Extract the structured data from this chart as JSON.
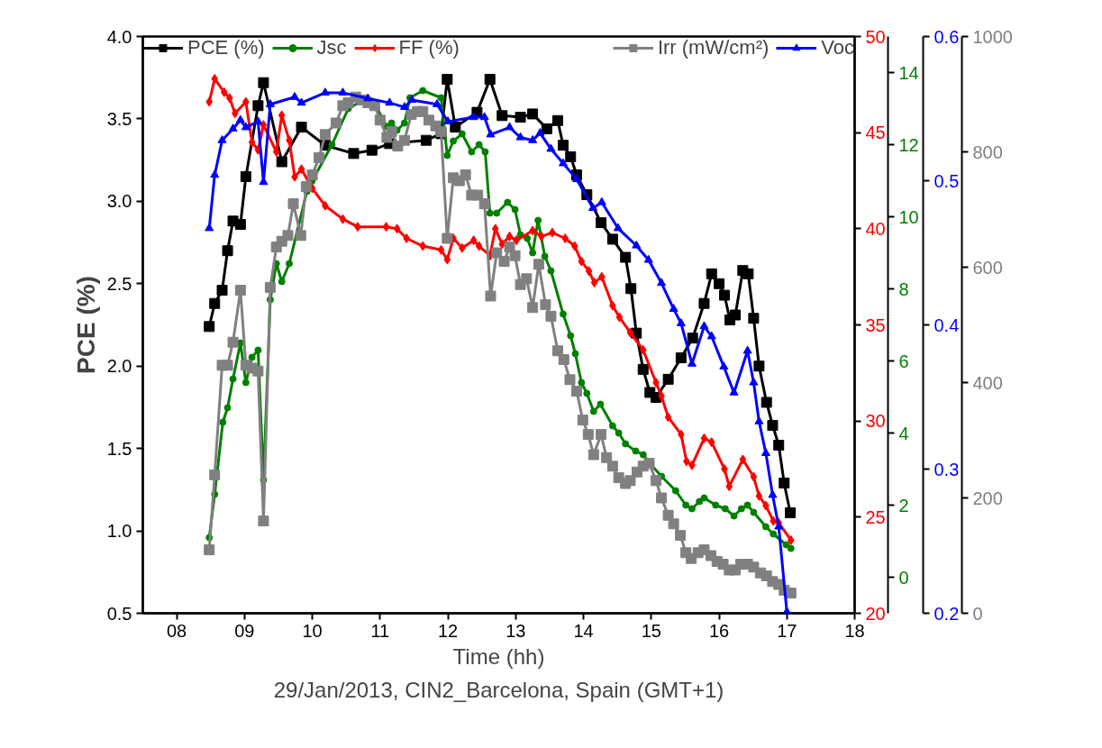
{
  "chart_data": [
    {
      "type": "line",
      "xlabel": "Time (hh)",
      "ylabel": "PCE (%)",
      "annotations": [
        "29/Jan/2013, CIN2_Barcelona, Spain (GMT+1)"
      ],
      "xlim": [
        7.5,
        18
      ],
      "xticks": [
        {
          "value": 8,
          "label": "08"
        },
        {
          "value": 9,
          "label": "09"
        },
        {
          "value": 10,
          "label": "10"
        },
        {
          "value": 11,
          "label": "11"
        },
        {
          "value": 12,
          "label": "12"
        },
        {
          "value": 13,
          "label": "13"
        },
        {
          "value": 14,
          "label": "14"
        },
        {
          "value": 15,
          "label": "15"
        },
        {
          "value": 16,
          "label": "16"
        },
        {
          "value": 17,
          "label": "17"
        },
        {
          "value": 18,
          "label": "18"
        }
      ],
      "ylim": [
        0.5,
        4.0
      ],
      "yticks": [
        {
          "value": 0.5,
          "label": "0.5"
        },
        {
          "value": 1.0,
          "label": "1.0"
        },
        {
          "value": 1.5,
          "label": "1.5"
        },
        {
          "value": 2.0,
          "label": "2.0"
        },
        {
          "value": 2.5,
          "label": "2.5"
        },
        {
          "value": 3.0,
          "label": "3.0"
        },
        {
          "value": 3.5,
          "label": "3.5"
        },
        {
          "value": 4.0,
          "label": "4.0"
        }
      ],
      "y2lim": [
        20,
        50
      ],
      "y2ticks": [
        20,
        25,
        30,
        35,
        40,
        45,
        50
      ],
      "y3lim": [
        -1,
        15
      ],
      "y3ticks": [
        0,
        2,
        4,
        6,
        8,
        10,
        12,
        14
      ],
      "legend": "top",
      "line_style": "solid",
      "series": [
        {
          "name": "PCE (%)",
          "color": "#000000",
          "marker": "square",
          "x": [
            8.48,
            8.56,
            8.67,
            8.75,
            8.83,
            8.94,
            9.02,
            9.2,
            9.28,
            9.55,
            9.84,
            10.19,
            10.61,
            10.88,
            11.14,
            11.68,
            11.9,
            11.99,
            12.11,
            12.43,
            12.62,
            12.8,
            13.07,
            13.25,
            13.46,
            13.62,
            13.7,
            13.81,
            13.9,
            14.05,
            14.26,
            14.43,
            14.62,
            14.7,
            14.78,
            14.88,
            14.98,
            15.07,
            15.25,
            15.44,
            15.61,
            15.78,
            15.89,
            16.0,
            16.08,
            16.16,
            16.24,
            16.35,
            16.43,
            16.51,
            16.59,
            16.7,
            16.79,
            16.88,
            16.96,
            17.05
          ],
          "values": [
            2.24,
            2.38,
            2.46,
            2.7,
            2.88,
            2.86,
            3.15,
            3.58,
            3.72,
            3.24,
            3.45,
            3.34,
            3.29,
            3.31,
            3.35,
            3.37,
            3.41,
            3.74,
            3.45,
            3.54,
            3.74,
            3.52,
            3.51,
            3.53,
            3.44,
            3.49,
            3.34,
            3.27,
            3.16,
            3.04,
            2.87,
            2.77,
            2.66,
            2.47,
            2.2,
            1.98,
            1.84,
            1.81,
            1.92,
            2.05,
            2.17,
            2.38,
            2.56,
            2.5,
            2.43,
            2.28,
            2.31,
            2.58,
            2.56,
            2.29,
            2.0,
            1.78,
            1.64,
            1.52,
            1.29,
            1.11
          ]
        },
        {
          "name": "Jsc",
          "color": "#008000",
          "axis": "y3",
          "marker": "circle",
          "x": [
            8.48,
            8.56,
            8.68,
            8.75,
            8.83,
            8.94,
            9.02,
            9.11,
            9.2,
            9.28,
            9.38,
            9.47,
            9.55,
            9.66,
            9.92,
            10.0,
            10.29,
            10.53,
            10.72,
            10.93,
            11.1,
            11.17,
            11.25,
            11.36,
            11.44,
            11.63,
            11.9,
            11.99,
            12.08,
            12.21,
            12.35,
            12.46,
            12.55,
            12.62,
            12.72,
            12.88,
            12.99,
            13.07,
            13.17,
            13.25,
            13.33,
            13.43,
            13.52,
            13.7,
            13.81,
            13.88,
            13.97,
            14.05,
            14.15,
            14.25,
            14.43,
            14.52,
            14.62,
            14.77,
            14.88,
            14.96,
            15.15,
            15.36,
            15.51,
            15.6,
            15.71,
            15.78,
            15.95,
            16.09,
            16.22,
            16.33,
            16.42,
            16.51,
            16.69,
            16.8,
            16.99,
            17.06
          ],
          "values": [
            1.1,
            2.3,
            4.3,
            4.7,
            5.5,
            6.5,
            5.4,
            6.1,
            6.3,
            2.7,
            7.7,
            8.7,
            8.2,
            8.7,
            10.7,
            11.0,
            12.0,
            13.0,
            13.2,
            13.1,
            12.5,
            12.6,
            12.4,
            12.6,
            13.3,
            13.5,
            13.3,
            11.7,
            12.1,
            12.3,
            11.8,
            12.0,
            11.8,
            10.1,
            10.1,
            10.4,
            10.2,
            9.5,
            9.4,
            9.0,
            9.9,
            8.9,
            8.5,
            7.3,
            6.7,
            6.2,
            5.4,
            5.1,
            4.6,
            4.8,
            4.2,
            4.0,
            3.7,
            3.5,
            3.4,
            3.2,
            2.8,
            2.4,
            2.0,
            1.9,
            2.1,
            2.2,
            2.0,
            1.9,
            1.7,
            1.9,
            2.0,
            1.8,
            1.4,
            1.2,
            0.9,
            0.8
          ]
        },
        {
          "name": "FF (%)",
          "color": "#ff0000",
          "axis": "y2",
          "marker": "diamond",
          "x": [
            8.48,
            8.56,
            8.7,
            8.78,
            8.86,
            9.02,
            9.11,
            9.2,
            9.28,
            9.47,
            9.55,
            9.66,
            9.74,
            9.84,
            10.0,
            10.19,
            10.45,
            10.67,
            11.09,
            11.25,
            11.39,
            11.63,
            11.9,
            11.99,
            12.08,
            12.21,
            12.38,
            12.46,
            12.62,
            12.7,
            12.8,
            12.91,
            13.01,
            13.25,
            13.38,
            13.54,
            13.73,
            13.87,
            13.97,
            14.08,
            14.16,
            14.27,
            14.43,
            14.53,
            14.69,
            14.88,
            15.07,
            15.15,
            15.25,
            15.44,
            15.52,
            15.6,
            15.78,
            15.89,
            16.08,
            16.15,
            16.35,
            16.51,
            16.59,
            16.69,
            16.8,
            16.88,
            17.06
          ],
          "values": [
            46.6,
            47.8,
            47.1,
            46.8,
            46.0,
            46.6,
            44.5,
            44.1,
            45.4,
            44.0,
            45.9,
            44.6,
            42.7,
            43.1,
            42.1,
            41.2,
            40.5,
            40.1,
            40.1,
            40.0,
            39.5,
            39.1,
            38.9,
            38.4,
            39.5,
            39.0,
            39.4,
            39.1,
            38.6,
            40.0,
            39.2,
            39.6,
            39.4,
            39.9,
            39.6,
            39.8,
            39.5,
            39.1,
            38.3,
            37.8,
            37.2,
            37.5,
            36.0,
            35.4,
            34.6,
            33.7,
            32.0,
            31.3,
            30.2,
            29.3,
            27.9,
            27.7,
            29.1,
            28.9,
            27.5,
            26.6,
            28.0,
            27.1,
            26.1,
            25.6,
            24.8,
            24.7,
            23.8
          ]
        }
      ]
    },
    {
      "type": "line",
      "tick_labels": "y",
      "xlim": [
        7.5,
        18
      ],
      "ylim": [
        0.2,
        0.6
      ],
      "yticks": [
        0.2,
        0.3,
        0.4,
        0.5,
        0.6
      ],
      "y2lim": [
        0,
        1000
      ],
      "y2ticks": [
        0,
        200,
        400,
        600,
        800,
        1000
      ],
      "legend": "top",
      "line_style": "solid",
      "series": [
        {
          "name": "Irr (mW/cm²)",
          "color": "#808080",
          "axis": "y2",
          "marker": "square",
          "x": [
            8.48,
            8.56,
            8.67,
            8.75,
            8.83,
            8.94,
            9.02,
            9.11,
            9.2,
            9.28,
            9.38,
            9.47,
            9.55,
            9.64,
            9.72,
            9.83,
            9.91,
            10.0,
            10.1,
            10.19,
            10.35,
            10.45,
            10.53,
            10.64,
            10.73,
            10.82,
            10.92,
            11.0,
            11.1,
            11.17,
            11.26,
            11.36,
            11.46,
            11.55,
            11.63,
            11.72,
            11.82,
            11.9,
            11.99,
            12.08,
            12.17,
            12.26,
            12.35,
            12.44,
            12.54,
            12.63,
            12.72,
            12.83,
            12.91,
            12.99,
            13.07,
            13.16,
            13.25,
            13.34,
            13.44,
            13.52,
            13.62,
            13.71,
            13.8,
            13.9,
            13.99,
            14.07,
            14.15,
            14.26,
            14.34,
            14.43,
            14.52,
            14.62,
            14.69,
            14.79,
            14.88,
            14.97,
            15.07,
            15.15,
            15.25,
            15.33,
            15.43,
            15.51,
            15.59,
            15.69,
            15.78,
            15.88,
            15.97,
            16.06,
            16.15,
            16.24,
            16.32,
            16.42,
            16.51,
            16.61,
            16.7,
            16.79,
            16.88,
            16.96,
            17.06
          ],
          "values": [
            110,
            240,
            430,
            430,
            470,
            560,
            430,
            425,
            420,
            160,
            565,
            635,
            645,
            655,
            710,
            655,
            740,
            760,
            790,
            830,
            850,
            880,
            885,
            895,
            890,
            885,
            880,
            855,
            825,
            835,
            810,
            820,
            865,
            870,
            870,
            855,
            845,
            835,
            650,
            755,
            750,
            760,
            725,
            725,
            710,
            550,
            625,
            610,
            635,
            620,
            570,
            580,
            530,
            605,
            535,
            515,
            455,
            440,
            405,
            385,
            335,
            310,
            275,
            310,
            270,
            255,
            235,
            225,
            230,
            245,
            255,
            260,
            230,
            200,
            170,
            155,
            135,
            105,
            95,
            105,
            110,
            100,
            90,
            85,
            75,
            75,
            85,
            85,
            80,
            70,
            65,
            55,
            50,
            40,
            35
          ]
        },
        {
          "name": "Voc",
          "color": "#0000ff",
          "marker": "triangle",
          "x": [
            8.48,
            8.56,
            8.67,
            8.83,
            8.94,
            9.02,
            9.2,
            9.28,
            9.38,
            9.74,
            9.84,
            10.19,
            10.45,
            10.82,
            11.14,
            11.36,
            11.47,
            11.84,
            12.0,
            12.38,
            12.54,
            12.63,
            12.91,
            13.07,
            13.25,
            13.36,
            13.52,
            13.7,
            13.9,
            14.14,
            14.27,
            14.51,
            14.78,
            14.96,
            15.15,
            15.33,
            15.44,
            15.6,
            15.78,
            15.89,
            16.07,
            16.22,
            16.42,
            16.51,
            16.59,
            16.69,
            16.79,
            16.88,
            17.0
          ],
          "values": [
            0.467,
            0.504,
            0.528,
            0.536,
            0.542,
            0.537,
            0.541,
            0.499,
            0.553,
            0.558,
            0.554,
            0.561,
            0.561,
            0.557,
            0.554,
            0.551,
            0.556,
            0.553,
            0.541,
            0.544,
            0.544,
            0.532,
            0.537,
            0.53,
            0.528,
            0.533,
            0.522,
            0.512,
            0.501,
            0.481,
            0.485,
            0.467,
            0.455,
            0.445,
            0.429,
            0.411,
            0.401,
            0.373,
            0.399,
            0.392,
            0.371,
            0.353,
            0.382,
            0.36,
            0.333,
            0.311,
            0.282,
            0.26,
            0.201
          ]
        }
      ]
    }
  ]
}
